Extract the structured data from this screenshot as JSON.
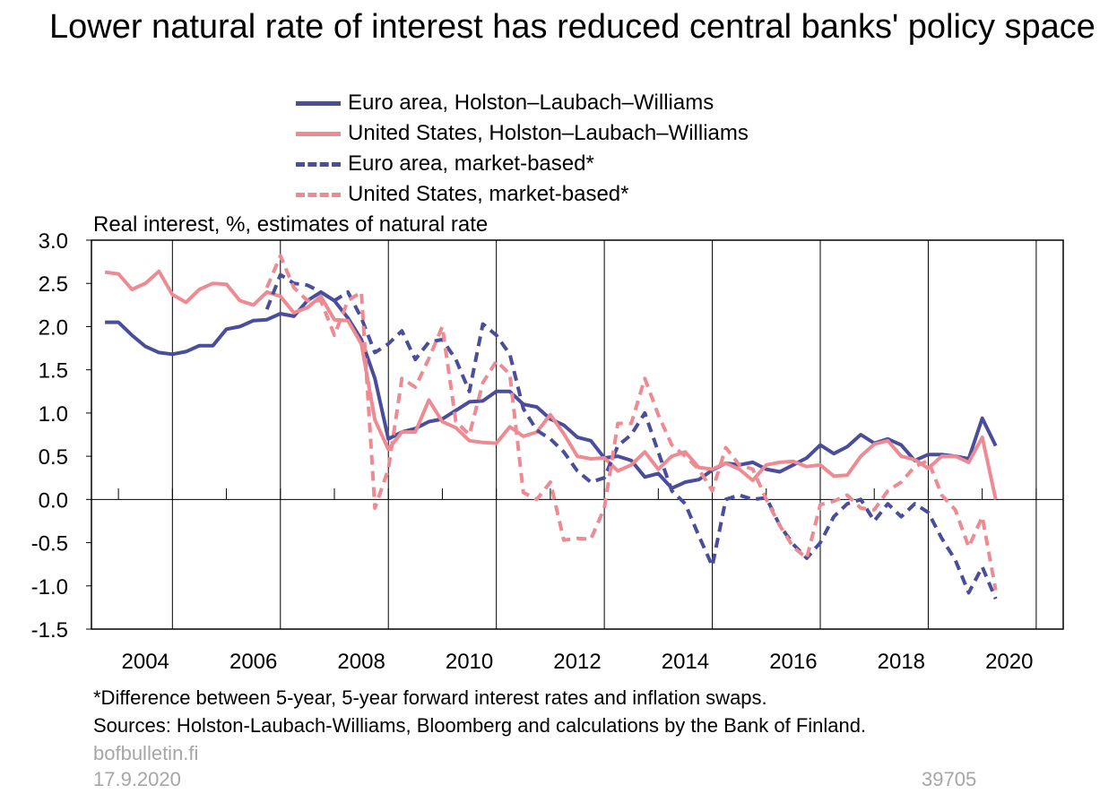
{
  "title": "Lower natural rate of interest has reduced central banks' policy space",
  "subtitle": "Real interest, %, estimates of natural rate",
  "footnote": "*Difference between 5-year, 5-year forward interest rates and inflation swaps.",
  "sources": "Sources: Holston-Laubach-Williams, Bloomberg and calculations by the Bank of Finland.",
  "site": "bofbulletin.fi",
  "date": "17.9.2020",
  "chart_id": "39705",
  "colors": {
    "euro": "#4a4c9c",
    "us": "#ee8a92"
  },
  "chart_data": {
    "type": "line",
    "ylim": [
      -1.5,
      3.0
    ],
    "xlim": [
      2003.5,
      2021.5
    ],
    "yticks": [
      "3.0",
      "2.5",
      "2.0",
      "1.5",
      "1.0",
      "0.5",
      "0.0",
      "-0.5",
      "-1.0",
      "-1.5"
    ],
    "xticks": [
      "2004",
      "2006",
      "2008",
      "2010",
      "2012",
      "2014",
      "2016",
      "2018",
      "2020"
    ],
    "legend_position": "top",
    "grid": "vertical",
    "series": [
      {
        "name": "Euro area, Holston–Laubach–Williams",
        "style": "solid",
        "color": "#4a4c9c",
        "x": [
          2003.75,
          2004.0,
          2004.25,
          2004.5,
          2004.75,
          2005.0,
          2005.25,
          2005.5,
          2005.75,
          2006.0,
          2006.25,
          2006.5,
          2006.75,
          2007.0,
          2007.25,
          2007.5,
          2007.75,
          2008.0,
          2008.25,
          2008.5,
          2008.75,
          2009.0,
          2009.25,
          2009.5,
          2009.75,
          2010.0,
          2010.25,
          2010.5,
          2010.75,
          2011.0,
          2011.25,
          2011.5,
          2011.75,
          2012.0,
          2012.25,
          2012.5,
          2012.75,
          2013.0,
          2013.25,
          2013.5,
          2013.75,
          2014.0,
          2014.25,
          2014.5,
          2014.75,
          2015.0,
          2015.25,
          2015.5,
          2015.75,
          2016.0,
          2016.25,
          2016.5,
          2016.75,
          2017.0,
          2017.25,
          2017.5,
          2017.75,
          2018.0,
          2018.25,
          2018.5,
          2018.75,
          2019.0,
          2019.25,
          2019.5,
          2019.75,
          2020.0,
          2020.25
        ],
        "y": [
          2.05,
          2.05,
          1.9,
          1.77,
          1.7,
          1.68,
          1.71,
          1.78,
          1.78,
          1.97,
          2.0,
          2.07,
          2.08,
          2.15,
          2.12,
          2.3,
          2.4,
          2.3,
          2.1,
          1.85,
          1.4,
          0.7,
          0.78,
          0.82,
          0.9,
          0.93,
          1.03,
          1.13,
          1.14,
          1.25,
          1.25,
          1.1,
          1.07,
          0.93,
          0.86,
          0.72,
          0.68,
          0.48,
          0.5,
          0.45,
          0.26,
          0.3,
          0.13,
          0.2,
          0.23,
          0.34,
          0.42,
          0.4,
          0.43,
          0.35,
          0.32,
          0.4,
          0.48,
          0.63,
          0.53,
          0.61,
          0.75,
          0.65,
          0.7,
          0.63,
          0.45,
          0.52,
          0.52,
          0.5,
          0.47,
          0.94,
          0.62
        ]
      },
      {
        "name": "United States, Holston–Laubach–Williams",
        "style": "solid",
        "color": "#ee8a92",
        "x": [
          2003.75,
          2004.0,
          2004.25,
          2004.5,
          2004.75,
          2005.0,
          2005.25,
          2005.5,
          2005.75,
          2006.0,
          2006.25,
          2006.5,
          2006.75,
          2007.0,
          2007.25,
          2007.5,
          2007.75,
          2008.0,
          2008.25,
          2008.5,
          2008.75,
          2009.0,
          2009.25,
          2009.5,
          2009.75,
          2010.0,
          2010.25,
          2010.5,
          2010.75,
          2011.0,
          2011.25,
          2011.5,
          2011.75,
          2012.0,
          2012.25,
          2012.5,
          2012.75,
          2013.0,
          2013.25,
          2013.5,
          2013.75,
          2014.0,
          2014.25,
          2014.5,
          2014.75,
          2015.0,
          2015.25,
          2015.5,
          2015.75,
          2016.0,
          2016.25,
          2016.5,
          2016.75,
          2017.0,
          2017.25,
          2017.5,
          2017.75,
          2018.0,
          2018.25,
          2018.5,
          2018.75,
          2019.0,
          2019.25,
          2019.5,
          2019.75,
          2020.0,
          2020.25
        ],
        "y": [
          2.63,
          2.61,
          2.43,
          2.5,
          2.64,
          2.37,
          2.28,
          2.43,
          2.5,
          2.49,
          2.3,
          2.25,
          2.4,
          2.35,
          2.16,
          2.22,
          2.35,
          2.08,
          2.07,
          1.8,
          0.92,
          0.58,
          0.78,
          0.78,
          1.15,
          0.9,
          0.83,
          0.68,
          0.66,
          0.65,
          0.84,
          0.73,
          0.78,
          0.98,
          0.76,
          0.5,
          0.47,
          0.48,
          0.33,
          0.4,
          0.55,
          0.35,
          0.5,
          0.55,
          0.37,
          0.35,
          0.42,
          0.35,
          0.22,
          0.4,
          0.43,
          0.44,
          0.38,
          0.4,
          0.27,
          0.28,
          0.5,
          0.64,
          0.68,
          0.5,
          0.46,
          0.36,
          0.5,
          0.5,
          0.43,
          0.72,
          0.0
        ]
      },
      {
        "name": "Euro area, market-based*",
        "style": "dashed",
        "color": "#4a4c9c",
        "x": [
          2006.75,
          2007.0,
          2007.25,
          2007.5,
          2007.75,
          2008.0,
          2008.25,
          2008.5,
          2008.75,
          2009.0,
          2009.25,
          2009.5,
          2009.75,
          2010.0,
          2010.25,
          2010.5,
          2010.75,
          2011.0,
          2011.25,
          2011.5,
          2011.75,
          2012.0,
          2012.25,
          2012.5,
          2012.75,
          2013.0,
          2013.25,
          2013.5,
          2013.75,
          2014.0,
          2014.25,
          2014.5,
          2014.75,
          2015.0,
          2015.25,
          2015.5,
          2015.75,
          2016.0,
          2016.25,
          2016.5,
          2016.75,
          2017.0,
          2017.25,
          2017.5,
          2017.75,
          2018.0,
          2018.25,
          2018.5,
          2018.75,
          2019.0,
          2019.25,
          2019.5,
          2019.75,
          2020.0,
          2020.25
        ],
        "y": [
          2.2,
          2.6,
          2.5,
          2.48,
          2.4,
          2.3,
          2.4,
          2.1,
          1.7,
          1.8,
          1.95,
          1.62,
          1.82,
          1.85,
          1.62,
          1.25,
          2.03,
          1.9,
          1.68,
          1.05,
          0.8,
          0.7,
          0.55,
          0.33,
          0.2,
          0.25,
          0.62,
          0.75,
          1.0,
          0.55,
          0.1,
          -0.05,
          -0.42,
          -0.77,
          0.0,
          0.05,
          0.0,
          0.02,
          -0.3,
          -0.52,
          -0.68,
          -0.5,
          -0.2,
          -0.05,
          0.0,
          -0.25,
          -0.05,
          -0.2,
          -0.05,
          -0.15,
          -0.45,
          -0.7,
          -1.08,
          -0.78,
          -1.15
        ]
      },
      {
        "name": "United States, market-based*",
        "style": "dashed",
        "color": "#ee8a92",
        "x": [
          2006.75,
          2007.0,
          2007.25,
          2007.5,
          2007.75,
          2008.0,
          2008.25,
          2008.5,
          2008.75,
          2009.0,
          2009.25,
          2009.5,
          2009.75,
          2010.0,
          2010.25,
          2010.5,
          2010.75,
          2011.0,
          2011.25,
          2011.5,
          2011.75,
          2012.0,
          2012.25,
          2012.5,
          2012.75,
          2013.0,
          2013.25,
          2013.5,
          2013.75,
          2014.0,
          2014.25,
          2014.5,
          2014.75,
          2015.0,
          2015.25,
          2015.5,
          2015.75,
          2016.0,
          2016.25,
          2016.5,
          2016.75,
          2017.0,
          2017.25,
          2017.5,
          2017.75,
          2018.0,
          2018.25,
          2018.5,
          2018.75,
          2019.0,
          2019.25,
          2019.5,
          2019.75,
          2020.0,
          2020.25
        ],
        "y": [
          2.45,
          2.82,
          2.45,
          2.3,
          2.3,
          1.9,
          2.3,
          2.4,
          -0.1,
          0.35,
          1.4,
          1.3,
          1.63,
          2.0,
          0.9,
          0.75,
          1.35,
          1.6,
          1.45,
          0.08,
          0.0,
          0.2,
          -0.47,
          -0.45,
          -0.46,
          -0.1,
          0.88,
          0.88,
          1.4,
          0.98,
          0.63,
          0.5,
          0.35,
          0.1,
          0.6,
          0.4,
          0.35,
          0.0,
          -0.3,
          -0.55,
          -0.68,
          -0.06,
          -0.02,
          0.05,
          -0.1,
          -0.12,
          0.1,
          0.2,
          0.38,
          0.45,
          0.05,
          -0.12,
          -0.55,
          -0.2,
          -1.05
        ]
      }
    ]
  }
}
